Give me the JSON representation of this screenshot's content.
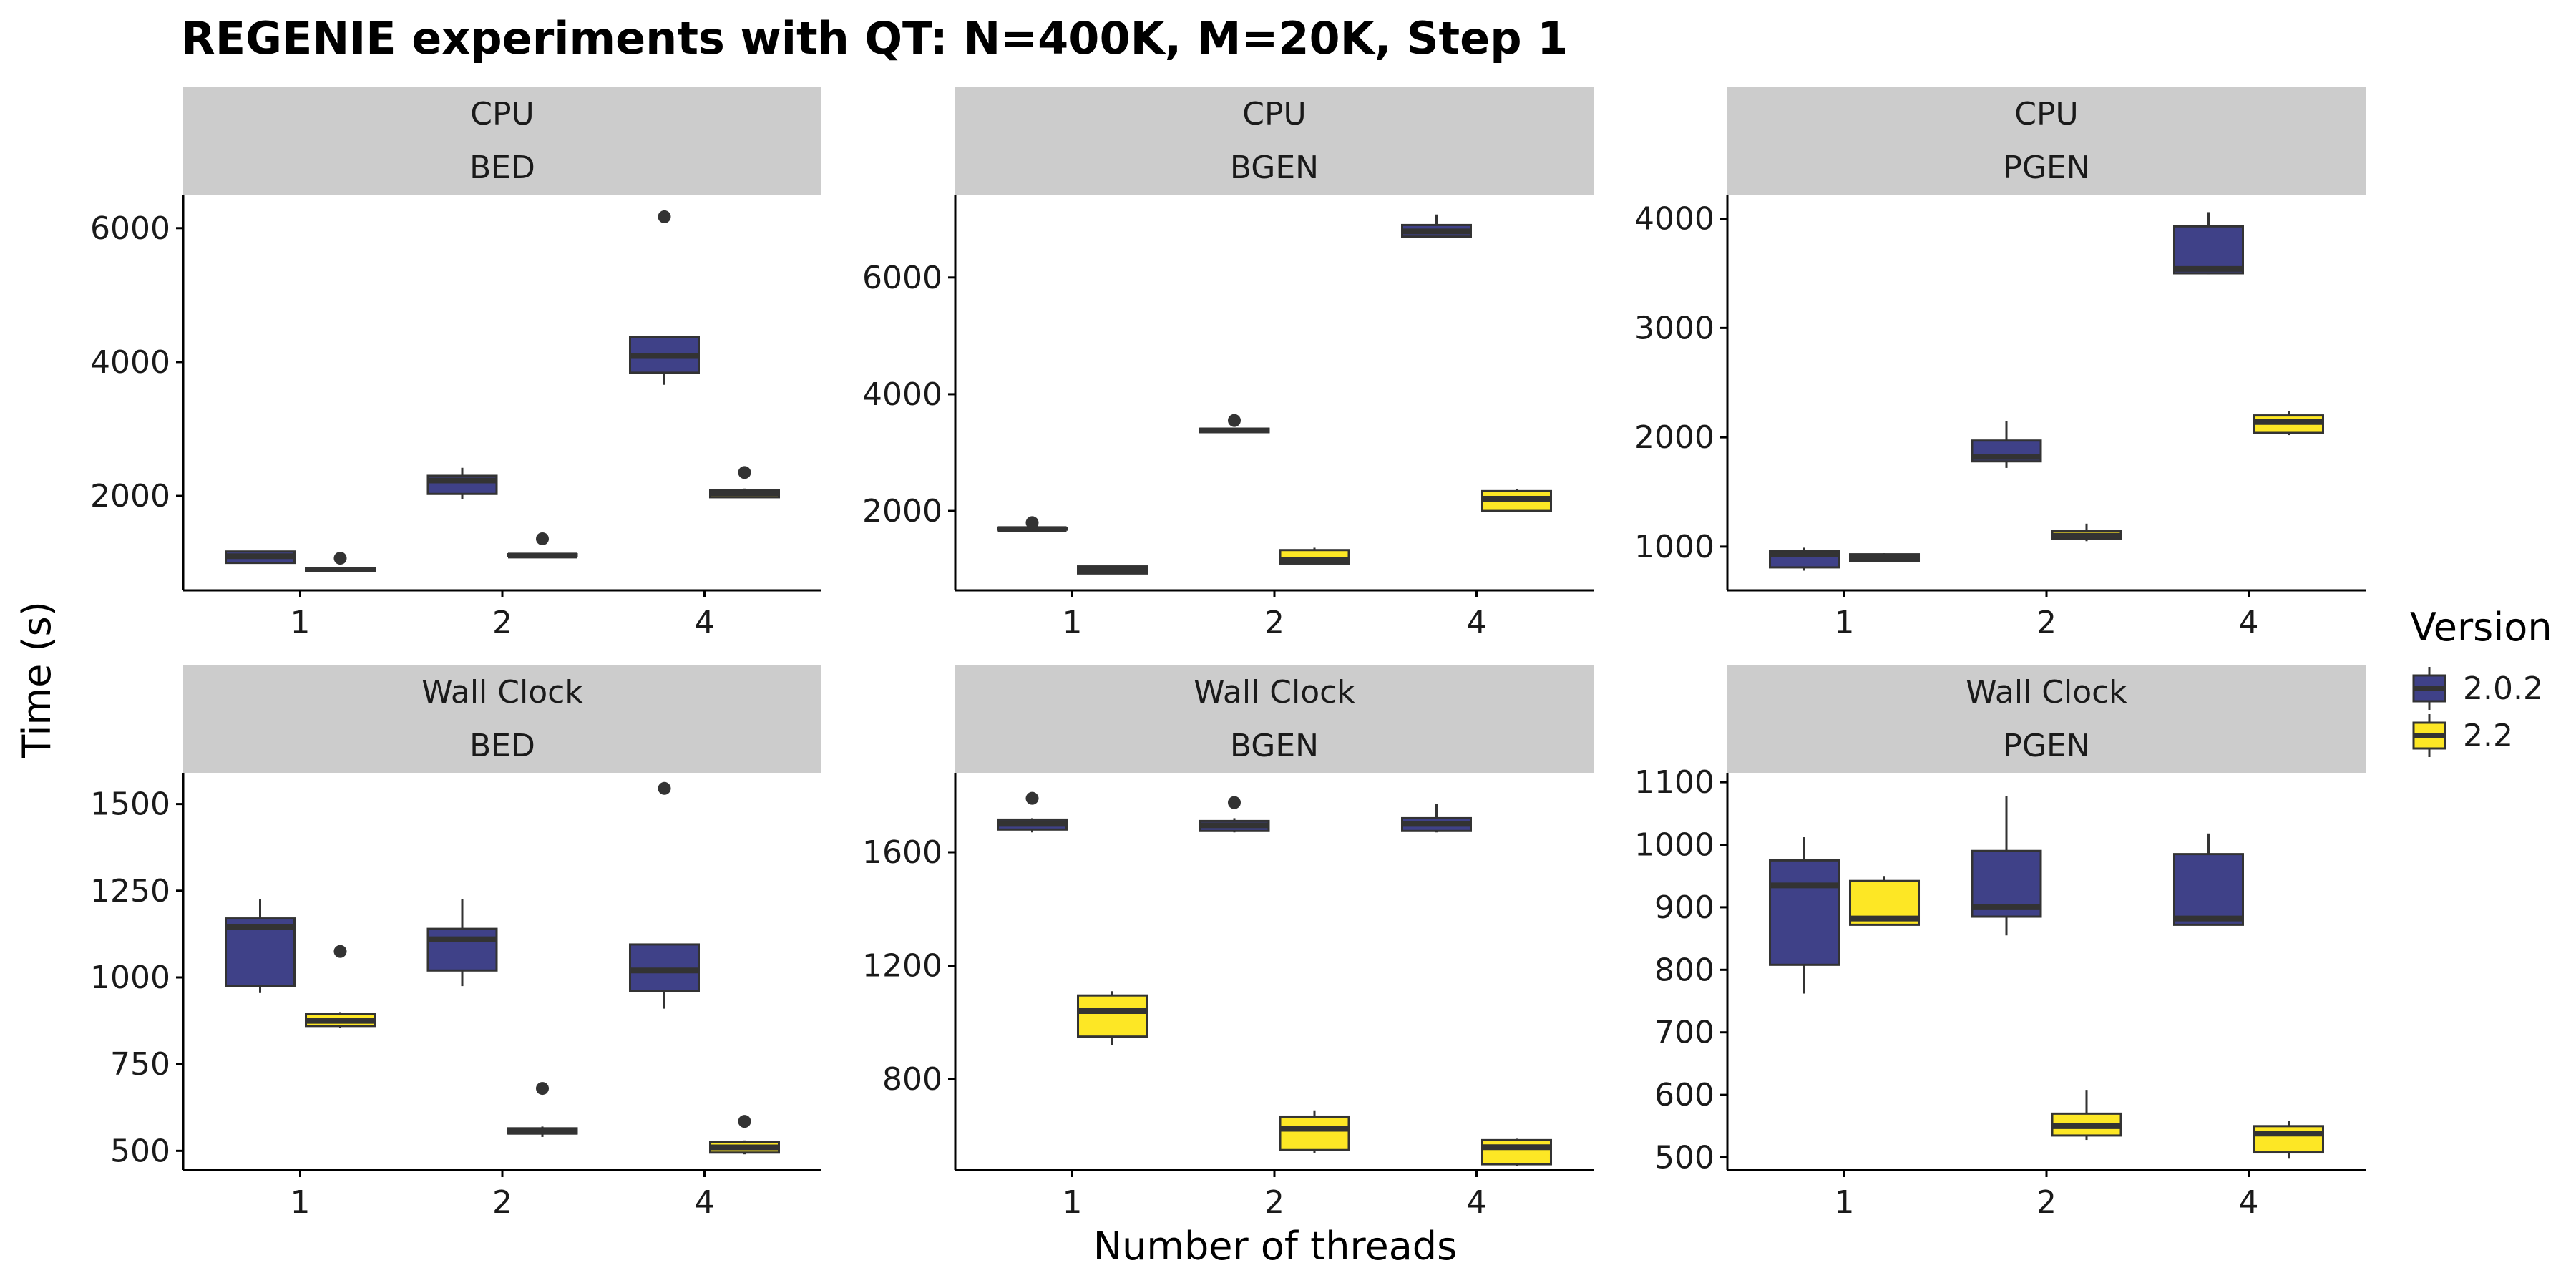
{
  "chart_data": {
    "type": "boxplot",
    "title": "REGENIE experiments with QT: N=400K, M=20K, Step 1",
    "xlabel": "Number of threads",
    "ylabel": "Time (s)",
    "categories": [
      "1",
      "2",
      "4"
    ],
    "legend": {
      "title": "Version",
      "position": "right",
      "entries": [
        {
          "name": "2.0.2",
          "color": "#3f4188"
        },
        {
          "name": "2.2",
          "color": "#fde725"
        }
      ]
    },
    "facets": [
      {
        "row": "CPU",
        "col": "BED",
        "ylim": [
          590,
          6500
        ],
        "yticks": [
          2000,
          4000,
          6000
        ],
        "groups": [
          {
            "x": "1",
            "version": "2.0.2",
            "min": 1000,
            "q1": 1000,
            "median": 1100,
            "q3": 1170,
            "max": 1180,
            "outliers": []
          },
          {
            "x": "1",
            "version": "2.2",
            "min": 870,
            "q1": 880,
            "median": 900,
            "q3": 920,
            "max": 930,
            "outliers": [
              1070
            ]
          },
          {
            "x": "2",
            "version": "2.0.2",
            "min": 1950,
            "q1": 2030,
            "median": 2230,
            "q3": 2300,
            "max": 2420,
            "outliers": []
          },
          {
            "x": "2",
            "version": "2.2",
            "min": 1090,
            "q1": 1100,
            "median": 1110,
            "q3": 1130,
            "max": 1140,
            "outliers": [
              1360
            ]
          },
          {
            "x": "4",
            "version": "2.0.2",
            "min": 3660,
            "q1": 3840,
            "median": 4090,
            "q3": 4370,
            "max": 4370,
            "outliers": [
              6170
            ]
          },
          {
            "x": "4",
            "version": "2.2",
            "min": 1980,
            "q1": 1980,
            "median": 2040,
            "q3": 2090,
            "max": 2110,
            "outliers": [
              2350
            ]
          }
        ]
      },
      {
        "row": "CPU",
        "col": "BGEN",
        "ylim": [
          640,
          7420
        ],
        "yticks": [
          2000,
          4000,
          6000
        ],
        "groups": [
          {
            "x": "1",
            "version": "2.0.2",
            "min": 1670,
            "q1": 1680,
            "median": 1690,
            "q3": 1710,
            "max": 1720,
            "outliers": [
              1800
            ]
          },
          {
            "x": "1",
            "version": "2.2",
            "min": 930,
            "q1": 930,
            "median": 1000,
            "q3": 1050,
            "max": 1060,
            "outliers": []
          },
          {
            "x": "2",
            "version": "2.0.2",
            "min": 3340,
            "q1": 3350,
            "median": 3380,
            "q3": 3410,
            "max": 3420,
            "outliers": [
              3550
            ]
          },
          {
            "x": "2",
            "version": "2.2",
            "min": 1090,
            "q1": 1100,
            "median": 1160,
            "q3": 1330,
            "max": 1370,
            "outliers": []
          },
          {
            "x": "4",
            "version": "2.0.2",
            "min": 6700,
            "q1": 6700,
            "median": 6790,
            "q3": 6900,
            "max": 7080,
            "outliers": []
          },
          {
            "x": "4",
            "version": "2.2",
            "min": 1990,
            "q1": 2000,
            "median": 2210,
            "q3": 2340,
            "max": 2370,
            "outliers": []
          }
        ]
      },
      {
        "row": "CPU",
        "col": "PGEN",
        "ylim": [
          600,
          4220
        ],
        "yticks": [
          1000,
          2000,
          3000,
          4000
        ],
        "groups": [
          {
            "x": "1",
            "version": "2.0.2",
            "min": 780,
            "q1": 810,
            "median": 930,
            "q3": 960,
            "max": 990,
            "outliers": []
          },
          {
            "x": "1",
            "version": "2.2",
            "min": 870,
            "q1": 870,
            "median": 900,
            "q3": 930,
            "max": 940,
            "outliers": []
          },
          {
            "x": "2",
            "version": "2.0.2",
            "min": 1720,
            "q1": 1780,
            "median": 1820,
            "q3": 1970,
            "max": 2150,
            "outliers": []
          },
          {
            "x": "2",
            "version": "2.2",
            "min": 1050,
            "q1": 1070,
            "median": 1100,
            "q3": 1140,
            "max": 1210,
            "outliers": []
          },
          {
            "x": "4",
            "version": "2.0.2",
            "min": 3490,
            "q1": 3500,
            "median": 3540,
            "q3": 3930,
            "max": 4060,
            "outliers": []
          },
          {
            "x": "4",
            "version": "2.2",
            "min": 2020,
            "q1": 2040,
            "median": 2140,
            "q3": 2200,
            "max": 2240,
            "outliers": []
          }
        ]
      },
      {
        "row": "Wall Clock",
        "col": "BED",
        "ylim": [
          445,
          1590
        ],
        "yticks": [
          500,
          750,
          1000,
          1250,
          1500
        ],
        "groups": [
          {
            "x": "1",
            "version": "2.0.2",
            "min": 955,
            "q1": 975,
            "median": 1145,
            "q3": 1170,
            "max": 1225,
            "outliers": []
          },
          {
            "x": "1",
            "version": "2.2",
            "min": 855,
            "q1": 860,
            "median": 875,
            "q3": 895,
            "max": 900,
            "outliers": [
              1075
            ]
          },
          {
            "x": "2",
            "version": "2.0.2",
            "min": 975,
            "q1": 1020,
            "median": 1110,
            "q3": 1140,
            "max": 1225,
            "outliers": []
          },
          {
            "x": "2",
            "version": "2.2",
            "min": 540,
            "q1": 550,
            "median": 555,
            "q3": 565,
            "max": 570,
            "outliers": [
              680
            ]
          },
          {
            "x": "4",
            "version": "2.0.2",
            "min": 910,
            "q1": 960,
            "median": 1020,
            "q3": 1095,
            "max": 1095,
            "outliers": [
              1545
            ]
          },
          {
            "x": "4",
            "version": "2.2",
            "min": 490,
            "q1": 495,
            "median": 510,
            "q3": 525,
            "max": 530,
            "outliers": [
              585
            ]
          }
        ]
      },
      {
        "row": "Wall Clock",
        "col": "BGEN",
        "ylim": [
          480,
          1880
        ],
        "yticks": [
          800,
          1200,
          1600
        ],
        "groups": [
          {
            "x": "1",
            "version": "2.0.2",
            "min": 1670,
            "q1": 1680,
            "median": 1700,
            "q3": 1715,
            "max": 1720,
            "outliers": [
              1790
            ]
          },
          {
            "x": "1",
            "version": "2.2",
            "min": 920,
            "q1": 950,
            "median": 1040,
            "q3": 1095,
            "max": 1110,
            "outliers": []
          },
          {
            "x": "2",
            "version": "2.0.2",
            "min": 1670,
            "q1": 1675,
            "median": 1695,
            "q3": 1710,
            "max": 1720,
            "outliers": [
              1775
            ]
          },
          {
            "x": "2",
            "version": "2.2",
            "min": 540,
            "q1": 550,
            "median": 625,
            "q3": 668,
            "max": 690,
            "outliers": []
          },
          {
            "x": "4",
            "version": "2.0.2",
            "min": 1670,
            "q1": 1675,
            "median": 1700,
            "q3": 1720,
            "max": 1770,
            "outliers": []
          },
          {
            "x": "4",
            "version": "2.2",
            "min": 495,
            "q1": 500,
            "median": 560,
            "q3": 585,
            "max": 590,
            "outliers": []
          }
        ]
      },
      {
        "row": "Wall Clock",
        "col": "PGEN",
        "ylim": [
          480,
          1115
        ],
        "yticks": [
          500,
          600,
          700,
          800,
          900,
          1000,
          1100
        ],
        "groups": [
          {
            "x": "1",
            "version": "2.0.2",
            "min": 762,
            "q1": 808,
            "median": 935,
            "q3": 975,
            "max": 1012,
            "outliers": []
          },
          {
            "x": "1",
            "version": "2.2",
            "min": 872,
            "q1": 872,
            "median": 882,
            "q3": 942,
            "max": 950,
            "outliers": []
          },
          {
            "x": "2",
            "version": "2.0.2",
            "min": 855,
            "q1": 885,
            "median": 900,
            "q3": 990,
            "max": 1078,
            "outliers": []
          },
          {
            "x": "2",
            "version": "2.2",
            "min": 528,
            "q1": 535,
            "median": 550,
            "q3": 570,
            "max": 608,
            "outliers": []
          },
          {
            "x": "4",
            "version": "2.0.2",
            "min": 872,
            "q1": 872,
            "median": 882,
            "q3": 985,
            "max": 1018,
            "outliers": []
          },
          {
            "x": "4",
            "version": "2.2",
            "min": 498,
            "q1": 508,
            "median": 538,
            "q3": 550,
            "max": 558,
            "outliers": []
          }
        ]
      }
    ]
  }
}
